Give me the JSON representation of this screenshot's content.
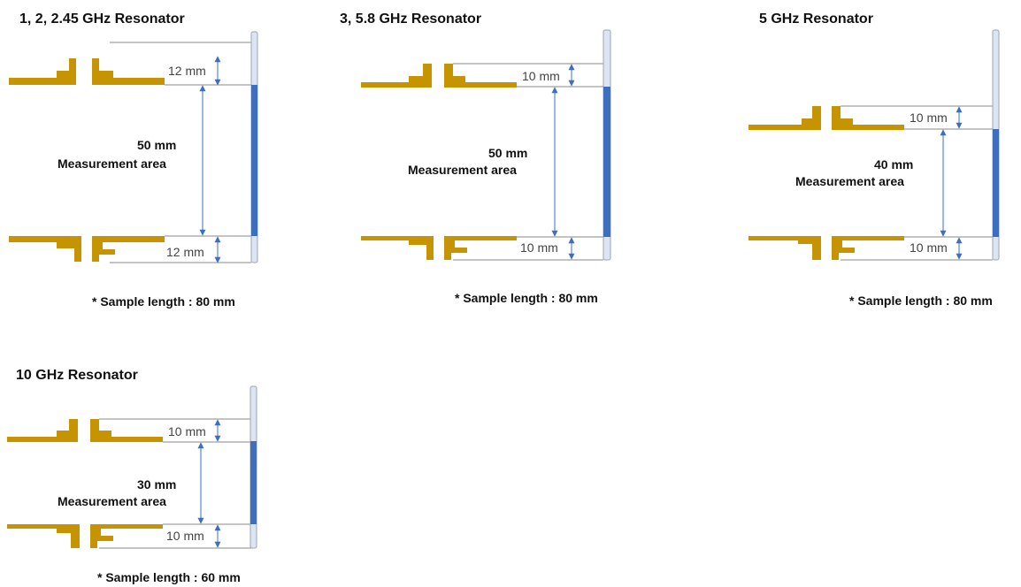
{
  "panels": [
    {
      "title": "1, 2, 2.45 GHz Resonator",
      "top_gap": "12 mm",
      "area_size": "50 mm",
      "area_label": "Measurement area",
      "bottom_gap": "12 mm",
      "note": "* Sample length : 80 mm"
    },
    {
      "title": "3, 5.8 GHz Resonator",
      "top_gap": "10 mm",
      "area_size": "50 mm",
      "area_label": "Measurement area",
      "bottom_gap": "10 mm",
      "note": "* Sample length : 80 mm"
    },
    {
      "title": "5 GHz Resonator",
      "top_gap": "10 mm",
      "area_size": "40 mm",
      "area_label": "Measurement area",
      "bottom_gap": "10 mm",
      "note": "* Sample length : 80 mm"
    },
    {
      "title": "10 GHz Resonator",
      "top_gap": "10 mm",
      "area_size": "30 mm",
      "area_label": "Measurement area",
      "bottom_gap": "10 mm",
      "note": "* Sample length : 60 mm"
    }
  ],
  "colors": {
    "electrode": "#C59400",
    "sample_fill": "#3E6FBF",
    "sample_tube": "#dde5f3",
    "dimension_arrow": "#3E6FBF"
  }
}
